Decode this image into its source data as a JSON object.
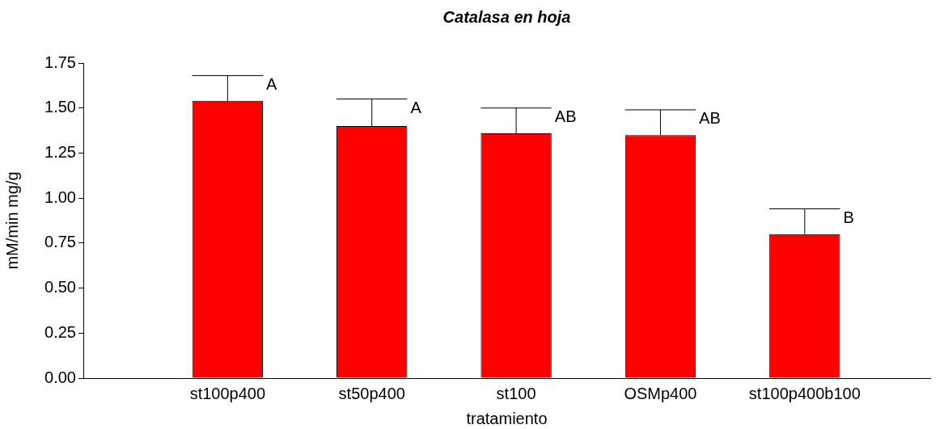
{
  "chart_data": {
    "type": "bar",
    "title": "Catalasa en hoja",
    "xlabel": "tratamiento",
    "ylabel": "mM/min mg/g",
    "categories": [
      "st100p400",
      "st50p400",
      "st100",
      "OSMp400",
      "st100p400b100"
    ],
    "values": [
      1.54,
      1.4,
      1.36,
      1.35,
      0.8
    ],
    "errors": [
      [
        1.54,
        1.68
      ],
      [
        1.4,
        1.55
      ],
      [
        1.36,
        1.5
      ],
      [
        1.35,
        1.49
      ],
      [
        0.8,
        0.94
      ]
    ],
    "color": "#ff0000",
    "ylim": [
      0,
      1.75
    ],
    "yticks": [
      {
        "value": 0,
        "label": "0.00"
      },
      {
        "value": 0.25,
        "label": "0.25"
      },
      {
        "value": 0.5,
        "label": "0.50"
      },
      {
        "value": 0.75,
        "label": "0.75"
      },
      {
        "value": 1,
        "label": "1.00"
      },
      {
        "value": 1.25,
        "label": "1.25"
      },
      {
        "value": 1.5,
        "label": "1.50"
      },
      {
        "value": 1.75,
        "label": "1.75"
      }
    ],
    "annotations": [
      {
        "text": "A",
        "x": "st100p400",
        "y": 1.68
      },
      {
        "text": "A",
        "x": "st50p400",
        "y": 1.55
      },
      {
        "text": "AB",
        "x": "st100",
        "y": 1.5
      },
      {
        "text": "AB",
        "x": "OSMp400",
        "y": 1.49
      },
      {
        "text": "B",
        "x": "st100p400b100",
        "y": 0.94
      }
    ],
    "grid": false,
    "legend": false
  }
}
